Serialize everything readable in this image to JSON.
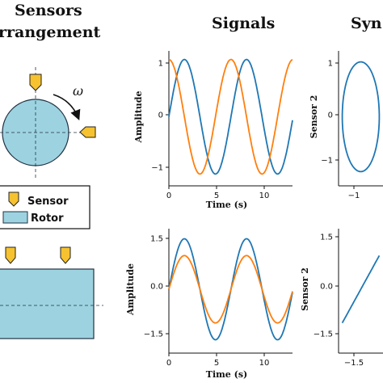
{
  "headings": {
    "sensors_line1": "Sensors",
    "sensors_line2": "rrangement",
    "signals": "Signals",
    "synth": "Syn"
  },
  "arrangement": {
    "omega_label": "ω",
    "legend": {
      "sensor_label": "Sensor",
      "rotor_label": "Rotor"
    }
  },
  "colors": {
    "series_1": "#1f77b4",
    "series_2": "#ff7f0e",
    "rotor_fill": "#9dd3e0",
    "sensor_fill": "#f6c22f"
  },
  "chart_data": [
    {
      "type": "line",
      "xlabel": "Time (s)",
      "ylabel": "Amplitude",
      "xlim": [
        0,
        12.5
      ],
      "ylim": [
        -1.15,
        1.15
      ],
      "xticks": [
        "0",
        "5",
        "10"
      ],
      "yticks": [
        "1",
        "0",
        "−1"
      ],
      "series": [
        {
          "color": "#1f77b4",
          "form": "sin",
          "amplitude": 1,
          "period": 6.28,
          "phase": 0
        },
        {
          "color": "#ff7f0e",
          "form": "sin",
          "amplitude": 1,
          "period": 6.28,
          "phase": 1.5708
        }
      ]
    },
    {
      "type": "line",
      "xlabel": "Time (s)",
      "ylabel": "Amplitude",
      "xlim": [
        0,
        12.5
      ],
      "ylim": [
        -1.8,
        1.8
      ],
      "xticks": [
        "0",
        "5",
        "10"
      ],
      "yticks": [
        "1.5",
        "0.0",
        "−1.5"
      ],
      "series": [
        {
          "color": "#1f77b4",
          "form": "sin",
          "amplitude": 1.5,
          "period": 6.28,
          "phase": 0
        },
        {
          "color": "#ff7f0e",
          "form": "sin",
          "amplitude": 1.0,
          "period": 6.28,
          "phase": 0
        }
      ]
    },
    {
      "type": "line",
      "xlabel": "",
      "ylabel": "Sensor 2",
      "xlim": [
        -1.2,
        1.2
      ],
      "ylim": [
        -1.2,
        1.2
      ],
      "xticks": [
        "−1"
      ],
      "yticks": [
        "1",
        "0",
        "−1"
      ],
      "series": [
        {
          "color": "#1f77b4",
          "form": "circle",
          "radius": 1
        }
      ]
    },
    {
      "type": "line",
      "xlabel": "",
      "ylabel": "Sensor 2",
      "xlim": [
        -1.8,
        1.8
      ],
      "ylim": [
        -1.8,
        1.8
      ],
      "xticks": [
        "−1.5"
      ],
      "yticks": [
        "1.5",
        "0.0",
        "−1.5"
      ],
      "series": [
        {
          "color": "#1f77b4",
          "form": "linear",
          "slope": 0.667
        }
      ]
    }
  ]
}
